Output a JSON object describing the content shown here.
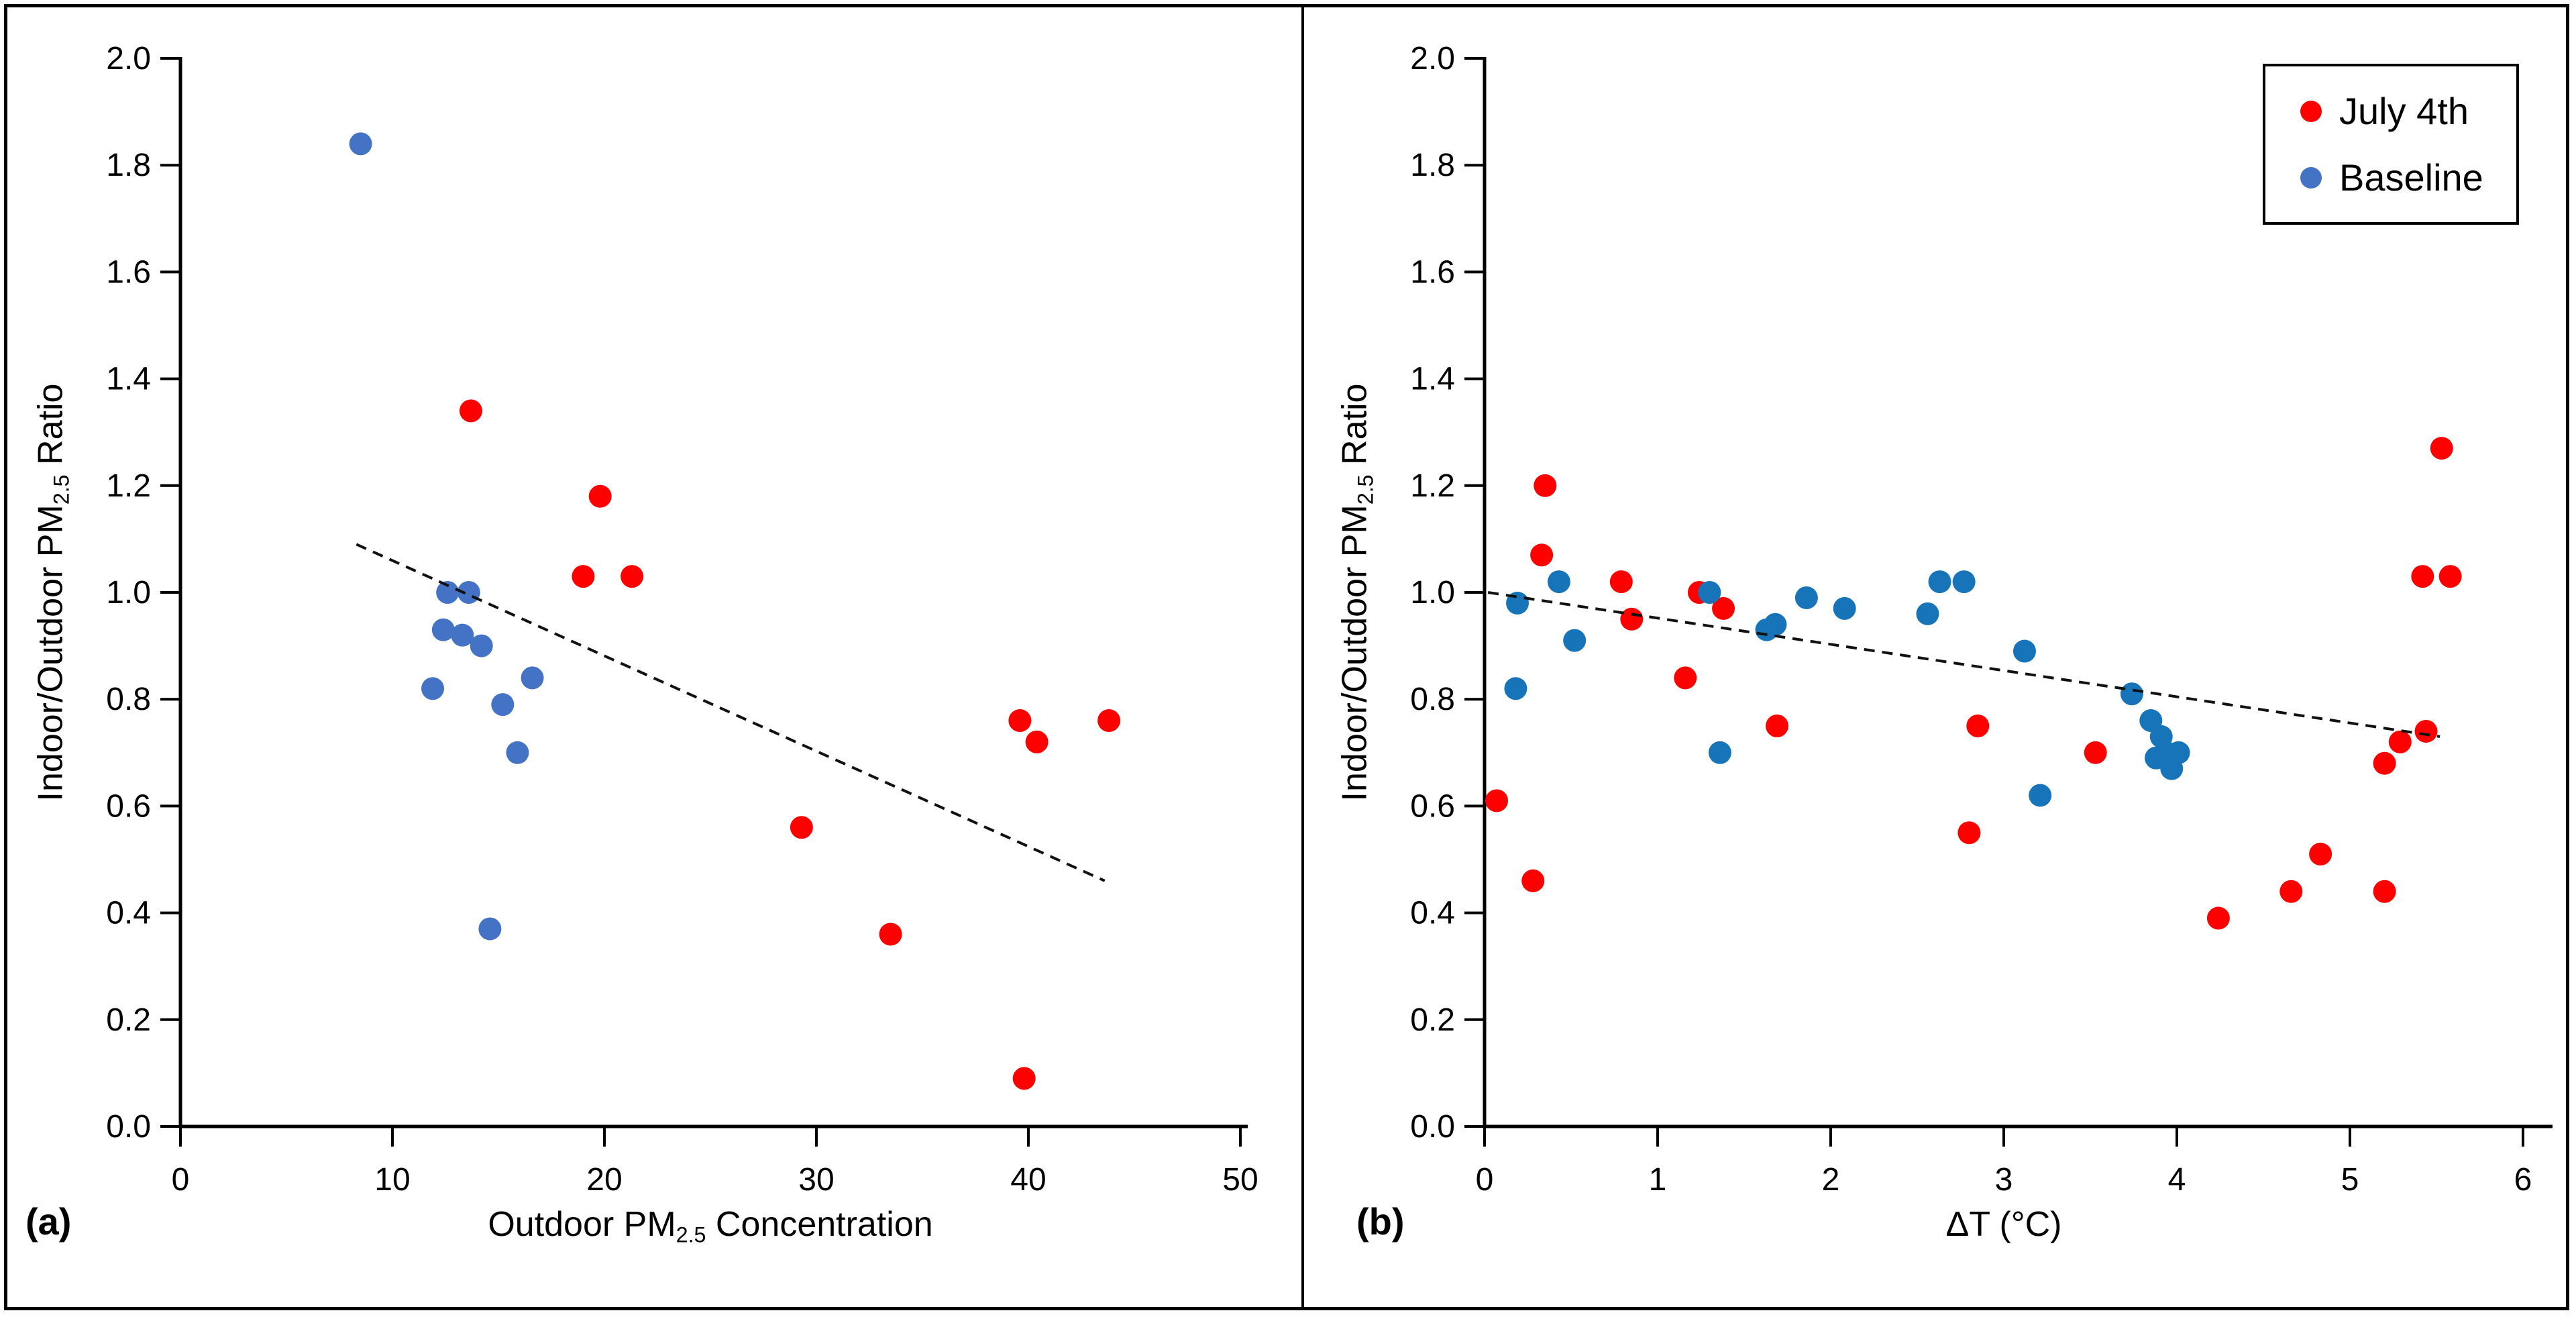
{
  "colors": {
    "july4": "#FF0000",
    "baseline_a": "#4472C4",
    "baseline_b": "#1874B8",
    "axis": "#000000",
    "trend": "#111111",
    "border": "#000000"
  },
  "chart_data": [
    {
      "type": "scatter",
      "panel_label": "(a)",
      "xlabel_parts": [
        "Outdoor PM",
        "2.5",
        " Concentration"
      ],
      "ylabel_parts": [
        "Indoor/Outdoor PM",
        "2.5",
        " Ratio"
      ],
      "xlim": [
        0,
        50
      ],
      "ylim": [
        0.0,
        2.0
      ],
      "grid": false,
      "xticks": {
        "values": [
          0,
          10,
          20,
          30,
          40,
          50
        ],
        "labels": [
          "0",
          "10",
          "20",
          "30",
          "40",
          "50"
        ]
      },
      "yticks": {
        "values": [
          0.0,
          0.2,
          0.4,
          0.6,
          0.8,
          1.0,
          1.2,
          1.4,
          1.6,
          1.8,
          2.0
        ],
        "labels": [
          "0.0",
          "0.2",
          "0.4",
          "0.6",
          "0.8",
          "1.0",
          "1.2",
          "1.4",
          "1.6",
          "1.8",
          "2.0"
        ]
      },
      "series": [
        {
          "name": "July 4th",
          "color_key": "july4",
          "points": [
            [
              13.7,
              1.34
            ],
            [
              19.8,
              1.18
            ],
            [
              19.0,
              1.03
            ],
            [
              21.3,
              1.03
            ],
            [
              29.3,
              0.56
            ],
            [
              33.5,
              0.36
            ],
            [
              39.6,
              0.76
            ],
            [
              40.4,
              0.72
            ],
            [
              43.8,
              0.76
            ],
            [
              39.8,
              0.09
            ]
          ]
        },
        {
          "name": "Baseline",
          "color_key": "baseline_a",
          "points": [
            [
              8.5,
              1.84
            ],
            [
              12.6,
              1.0
            ],
            [
              13.6,
              1.0
            ],
            [
              12.4,
              0.93
            ],
            [
              13.3,
              0.92
            ],
            [
              14.2,
              0.9
            ],
            [
              11.9,
              0.82
            ],
            [
              16.6,
              0.84
            ],
            [
              15.2,
              0.79
            ],
            [
              15.9,
              0.7
            ],
            [
              14.6,
              0.37
            ]
          ]
        }
      ],
      "trendline": {
        "style": "dashed",
        "from": [
          8.3,
          1.09
        ],
        "to": [
          43.6,
          0.46
        ]
      }
    },
    {
      "type": "scatter",
      "panel_label": "(b)",
      "xlabel": "ΔT (°C)",
      "ylabel_parts": [
        "Indoor/Outdoor PM",
        "2.5",
        " Ratio"
      ],
      "xlim": [
        0,
        6
      ],
      "ylim": [
        0.0,
        2.0
      ],
      "grid": false,
      "legend": {
        "position": "top-right",
        "items": [
          {
            "label": "July 4th",
            "color_key": "july4"
          },
          {
            "label": "Baseline",
            "color_key": "baseline_a"
          }
        ]
      },
      "xticks": {
        "values": [
          0,
          1,
          2,
          3,
          4,
          5,
          6
        ],
        "labels": [
          "0",
          "1",
          "2",
          "3",
          "4",
          "5",
          "6"
        ]
      },
      "yticks": {
        "values": [
          0.0,
          0.2,
          0.4,
          0.6,
          0.8,
          1.0,
          1.2,
          1.4,
          1.6,
          1.8,
          2.0
        ],
        "labels": [
          "0.0",
          "0.2",
          "0.4",
          "0.6",
          "0.8",
          "1.0",
          "1.2",
          "1.4",
          "1.6",
          "1.8",
          "2.0"
        ]
      },
      "series": [
        {
          "name": "July 4th",
          "color_key": "july4",
          "points": [
            [
              0.07,
              0.61
            ],
            [
              0.28,
              0.46
            ],
            [
              0.33,
              1.07
            ],
            [
              0.35,
              1.2
            ],
            [
              0.79,
              1.02
            ],
            [
              0.85,
              0.95
            ],
            [
              1.16,
              0.84
            ],
            [
              1.24,
              1.0
            ],
            [
              1.38,
              0.97
            ],
            [
              1.69,
              0.75
            ],
            [
              2.8,
              0.55
            ],
            [
              2.85,
              0.75
            ],
            [
              3.53,
              0.7
            ],
            [
              4.24,
              0.39
            ],
            [
              4.66,
              0.44
            ],
            [
              4.83,
              0.51
            ],
            [
              5.2,
              0.44
            ],
            [
              5.2,
              0.68
            ],
            [
              5.29,
              0.72
            ],
            [
              5.44,
              0.74
            ],
            [
              5.42,
              1.03
            ],
            [
              5.58,
              1.03
            ],
            [
              5.53,
              1.27
            ]
          ]
        },
        {
          "name": "Baseline",
          "color_key": "baseline_b",
          "points": [
            [
              0.18,
              0.82
            ],
            [
              0.19,
              0.98
            ],
            [
              0.43,
              1.02
            ],
            [
              0.52,
              0.91
            ],
            [
              1.3,
              1.0
            ],
            [
              1.36,
              0.7
            ],
            [
              1.63,
              0.93
            ],
            [
              1.68,
              0.94
            ],
            [
              1.86,
              0.99
            ],
            [
              2.08,
              0.97
            ],
            [
              2.56,
              0.96
            ],
            [
              2.63,
              1.02
            ],
            [
              2.77,
              1.02
            ],
            [
              3.12,
              0.89
            ],
            [
              3.21,
              0.62
            ],
            [
              3.74,
              0.81
            ],
            [
              3.85,
              0.76
            ],
            [
              3.88,
              0.69
            ],
            [
              3.91,
              0.73
            ],
            [
              3.94,
              0.7
            ],
            [
              3.97,
              0.67
            ],
            [
              4.01,
              0.7
            ]
          ]
        }
      ],
      "trendline": {
        "style": "dashed",
        "from": [
          0.02,
          1.0
        ],
        "to": [
          5.52,
          0.73
        ]
      }
    }
  ]
}
